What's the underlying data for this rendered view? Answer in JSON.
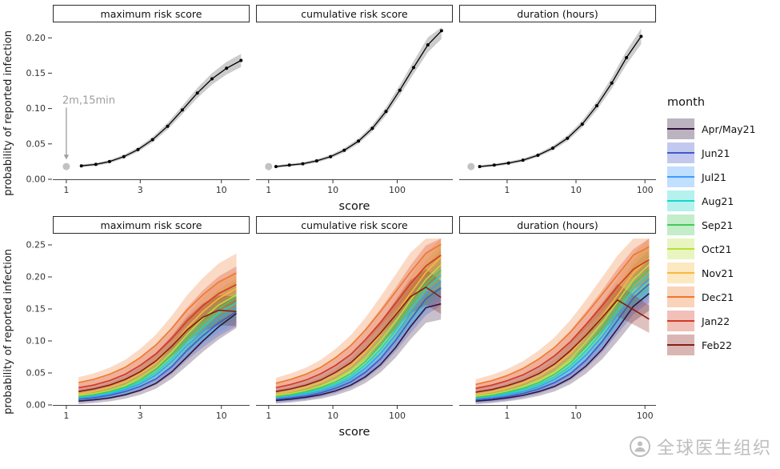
{
  "figure": {
    "watermark": {
      "text": "全球医生组织"
    }
  },
  "legend": {
    "title": "month",
    "items": [
      {
        "label": "Apr/May21",
        "color": "#30123b"
      },
      {
        "label": "Jun21",
        "color": "#4458cb"
      },
      {
        "label": "Jul21",
        "color": "#3e9bfe"
      },
      {
        "label": "Aug21",
        "color": "#18d6cb"
      },
      {
        "label": "Sep21",
        "color": "#46c85a"
      },
      {
        "label": "Oct21",
        "color": "#b9e03c"
      },
      {
        "label": "Nov21",
        "color": "#f7b93f"
      },
      {
        "label": "Dec21",
        "color": "#f0772a"
      },
      {
        "label": "Jan22",
        "color": "#d23a26"
      },
      {
        "label": "Feb22",
        "color": "#8a1d12"
      }
    ]
  },
  "chart_data": {
    "type": "line",
    "xlabel": "score",
    "ylabel": "probability of reported infection",
    "xscale": "log",
    "rows": [
      {
        "id": "overall",
        "ylim": [
          0,
          0.215
        ],
        "yticks": [
          0.0,
          0.05,
          0.1,
          0.15,
          0.2
        ],
        "band_rel": 0.05,
        "band_abs": 0.001,
        "line_color": "#000000",
        "band_color": "#9a9a9a",
        "panels": [
          {
            "title": "maximum risk score",
            "xlim": [
              0.9,
              14
            ],
            "xticks": [
              1,
              3,
              10
            ],
            "ref_point": {
              "x": 1.0,
              "y": 0.018
            },
            "note": "2m,15min",
            "x": [
              1.25,
              1.55,
              1.9,
              2.35,
              2.9,
              3.6,
              4.5,
              5.6,
              7.0,
              8.7,
              10.8,
              13.4
            ],
            "y": [
              0.019,
              0.021,
              0.025,
              0.032,
              0.042,
              0.056,
              0.075,
              0.098,
              0.122,
              0.142,
              0.157,
              0.168
            ]
          },
          {
            "title": "cumulative risk score",
            "xlim": [
              0.8,
              600
            ],
            "xticks": [
              1,
              10,
              100
            ],
            "ref_point": {
              "x": 1.0,
              "y": 0.018
            },
            "x": [
              1.3,
              2.1,
              3.4,
              5.6,
              9.2,
              15,
              25,
              41,
              67,
              110,
              180,
              300,
              490
            ],
            "y": [
              0.018,
              0.02,
              0.022,
              0.026,
              0.032,
              0.041,
              0.054,
              0.072,
              0.096,
              0.126,
              0.158,
              0.19,
              0.21
            ]
          },
          {
            "title": "duration (hours)",
            "xlim": [
              0.25,
              120
            ],
            "xticks": [
              1,
              10,
              100
            ],
            "ref_point": {
              "x": 0.3,
              "y": 0.018
            },
            "x": [
              0.4,
              0.65,
              1.05,
              1.7,
              2.8,
              4.6,
              7.5,
              12.3,
              20,
              33,
              54,
              88
            ],
            "y": [
              0.018,
              0.02,
              0.023,
              0.027,
              0.034,
              0.044,
              0.058,
              0.078,
              0.104,
              0.136,
              0.172,
              0.202
            ]
          }
        ]
      },
      {
        "id": "by_month",
        "ylim": [
          0,
          0.26
        ],
        "yticks": [
          0.0,
          0.05,
          0.1,
          0.15,
          0.2,
          0.25
        ],
        "band_rel": 0.13,
        "band_abs": 0.004,
        "panels": [
          {
            "title": "maximum risk score",
            "xlim": [
              0.9,
              14
            ],
            "xticks": [
              1,
              3,
              10
            ],
            "x": [
              1.2,
              1.5,
              1.9,
              2.4,
              3.0,
              3.8,
              4.8,
              6.0,
              7.6,
              9.6,
              12.5
            ],
            "series": [
              [
                0.006,
                0.008,
                0.011,
                0.016,
                0.023,
                0.034,
                0.052,
                0.075,
                0.1,
                0.122,
                0.143
              ],
              [
                0.009,
                0.011,
                0.015,
                0.021,
                0.029,
                0.041,
                0.06,
                0.085,
                0.108,
                0.128,
                0.146
              ],
              [
                0.011,
                0.013,
                0.017,
                0.024,
                0.033,
                0.047,
                0.068,
                0.093,
                0.115,
                0.135,
                0.152
              ],
              [
                0.012,
                0.015,
                0.019,
                0.026,
                0.036,
                0.051,
                0.073,
                0.098,
                0.122,
                0.143,
                0.16
              ],
              [
                0.013,
                0.016,
                0.021,
                0.028,
                0.039,
                0.055,
                0.078,
                0.104,
                0.128,
                0.15,
                0.168
              ],
              [
                0.015,
                0.018,
                0.023,
                0.031,
                0.043,
                0.059,
                0.083,
                0.11,
                0.135,
                0.156,
                0.172
              ],
              [
                0.017,
                0.021,
                0.027,
                0.036,
                0.049,
                0.066,
                0.092,
                0.12,
                0.146,
                0.166,
                0.182
              ],
              [
                0.035,
                0.04,
                0.048,
                0.059,
                0.074,
                0.094,
                0.12,
                0.148,
                0.172,
                0.192,
                0.206
              ],
              [
                0.027,
                0.031,
                0.038,
                0.048,
                0.062,
                0.08,
                0.104,
                0.131,
                0.155,
                0.174,
                0.188
              ],
              [
                0.021,
                0.025,
                0.031,
                0.04,
                0.052,
                0.069,
                0.092,
                0.117,
                0.137,
                0.148,
                0.146
              ]
            ]
          },
          {
            "title": "cumulative risk score",
            "xlim": [
              0.8,
              600
            ],
            "xticks": [
              1,
              10,
              100
            ],
            "x": [
              1.3,
              2.2,
              3.8,
              6.5,
              11,
              19,
              32,
              55,
              95,
              160,
              280,
              480
            ],
            "series": [
              [
                0.007,
                0.009,
                0.012,
                0.016,
                0.022,
                0.031,
                0.044,
                0.063,
                0.09,
                0.122,
                0.152,
                0.158
              ],
              [
                0.009,
                0.011,
                0.014,
                0.019,
                0.026,
                0.036,
                0.051,
                0.072,
                0.101,
                0.133,
                0.166,
                0.183
              ],
              [
                0.011,
                0.013,
                0.017,
                0.022,
                0.03,
                0.041,
                0.057,
                0.08,
                0.11,
                0.142,
                0.174,
                0.193
              ],
              [
                0.012,
                0.015,
                0.019,
                0.025,
                0.033,
                0.045,
                0.063,
                0.087,
                0.117,
                0.149,
                0.181,
                0.203
              ],
              [
                0.013,
                0.016,
                0.021,
                0.027,
                0.036,
                0.049,
                0.068,
                0.093,
                0.124,
                0.156,
                0.189,
                0.211
              ],
              [
                0.015,
                0.018,
                0.023,
                0.03,
                0.04,
                0.054,
                0.074,
                0.1,
                0.131,
                0.163,
                0.196,
                0.219
              ],
              [
                0.017,
                0.021,
                0.027,
                0.035,
                0.046,
                0.061,
                0.083,
                0.11,
                0.142,
                0.174,
                0.207,
                0.231
              ],
              [
                0.034,
                0.04,
                0.048,
                0.059,
                0.074,
                0.093,
                0.117,
                0.146,
                0.177,
                0.207,
                0.237,
                0.251
              ],
              [
                0.027,
                0.032,
                0.039,
                0.049,
                0.062,
                0.079,
                0.102,
                0.129,
                0.159,
                0.189,
                0.217,
                0.234
              ],
              [
                0.021,
                0.025,
                0.031,
                0.039,
                0.051,
                0.066,
                0.087,
                0.112,
                0.141,
                0.169,
                0.184,
                0.168
              ]
            ]
          },
          {
            "title": "duration (hours)",
            "xlim": [
              0.25,
              120
            ],
            "xticks": [
              1,
              10,
              100
            ],
            "x": [
              0.35,
              0.6,
              1.0,
              1.7,
              2.9,
              4.9,
              8.3,
              14,
              24,
              40,
              68,
              115
            ],
            "series": [
              [
                0.006,
                0.008,
                0.011,
                0.015,
                0.021,
                0.029,
                0.042,
                0.061,
                0.087,
                0.119,
                0.154,
                0.174
              ],
              [
                0.008,
                0.01,
                0.013,
                0.018,
                0.025,
                0.035,
                0.049,
                0.07,
                0.099,
                0.132,
                0.167,
                0.189
              ],
              [
                0.01,
                0.012,
                0.016,
                0.021,
                0.029,
                0.04,
                0.056,
                0.078,
                0.107,
                0.14,
                0.174,
                0.197
              ],
              [
                0.011,
                0.014,
                0.018,
                0.024,
                0.032,
                0.044,
                0.061,
                0.085,
                0.114,
                0.147,
                0.181,
                0.204
              ],
              [
                0.012,
                0.015,
                0.02,
                0.026,
                0.035,
                0.048,
                0.066,
                0.091,
                0.121,
                0.154,
                0.189,
                0.211
              ],
              [
                0.014,
                0.017,
                0.022,
                0.029,
                0.039,
                0.052,
                0.072,
                0.098,
                0.129,
                0.161,
                0.196,
                0.219
              ],
              [
                0.016,
                0.02,
                0.026,
                0.034,
                0.045,
                0.06,
                0.081,
                0.108,
                0.139,
                0.171,
                0.206,
                0.229
              ],
              [
                0.032,
                0.038,
                0.046,
                0.057,
                0.072,
                0.09,
                0.114,
                0.142,
                0.173,
                0.203,
                0.234,
                0.247
              ],
              [
                0.026,
                0.031,
                0.038,
                0.047,
                0.06,
                0.077,
                0.099,
                0.126,
                0.155,
                0.185,
                0.212,
                0.227
              ],
              [
                0.02,
                0.024,
                0.03,
                0.038,
                0.049,
                0.064,
                0.085,
                0.109,
                0.137,
                0.164,
                0.149,
                0.134
              ]
            ]
          }
        ]
      }
    ]
  }
}
